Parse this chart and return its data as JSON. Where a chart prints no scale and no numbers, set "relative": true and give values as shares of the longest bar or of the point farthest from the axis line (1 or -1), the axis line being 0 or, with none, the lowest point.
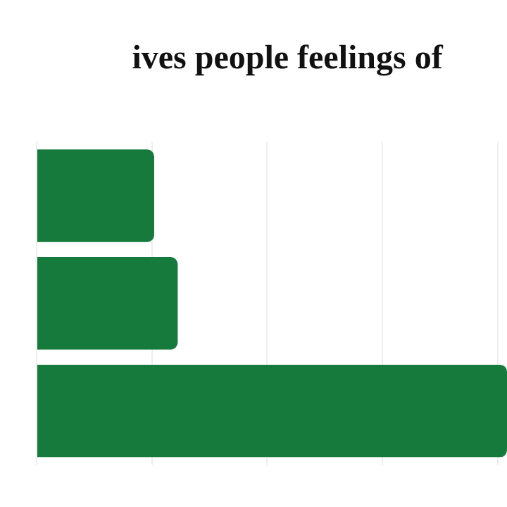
{
  "chart_data": {
    "type": "bar",
    "orientation": "horizontal",
    "relative": true,
    "title": "ives people feelings of",
    "categories": [
      null,
      null,
      null
    ],
    "values": [
      0.25,
      0.3,
      1
    ],
    "color": "#177a3d",
    "grid": "x"
  }
}
